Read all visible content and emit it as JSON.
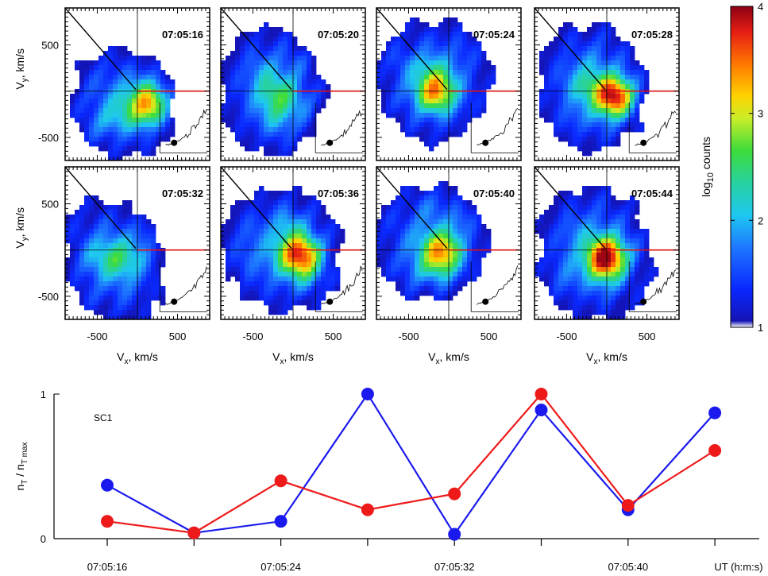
{
  "chart_data": [
    {
      "type": "heatmap",
      "panels": [
        {
          "time": "07:05:16"
        },
        {
          "time": "07:05:20"
        },
        {
          "time": "07:05:24"
        },
        {
          "time": "07:05:28"
        },
        {
          "time": "07:05:32"
        },
        {
          "time": "07:05:36"
        },
        {
          "time": "07:05:40"
        },
        {
          "time": "07:05:44"
        }
      ],
      "xlabel_main": "V",
      "xlabel_sub": "x",
      "xlabel_unit": ", km/s",
      "ylabel_main": "V",
      "ylabel_sub": "y",
      "ylabel_unit": ", km/s",
      "x_ticks": [
        -500,
        500
      ],
      "y_ticks": [
        500,
        -500
      ],
      "xlim": [
        -900,
        900
      ],
      "ylim": [
        -750,
        900
      ],
      "colorbar": {
        "label_pre": "log",
        "label_sub": "10",
        "label_post": " counts",
        "range": [
          1,
          4
        ],
        "ticks": [
          1,
          2,
          3,
          4
        ]
      }
    },
    {
      "type": "line",
      "series_label": "SC1",
      "ylabel_main": "n",
      "ylabel_sub1": "T",
      "ylabel_mid": " / n",
      "ylabel_sub2": "T max",
      "x_unit_label": "UT (h:m:s)",
      "x_tick_labels": [
        "07:05:16",
        "07:05:24",
        "07:05:32",
        "07:05:40"
      ],
      "y_ticks": [
        0,
        1
      ],
      "ylim": [
        0,
        1
      ],
      "x_index": [
        0,
        1,
        2,
        3,
        4,
        5,
        6,
        7
      ],
      "series": [
        {
          "color": "#1a1aee",
          "values": [
            0.37,
            0.04,
            0.12,
            1.0,
            0.03,
            0.89,
            0.2,
            0.87
          ]
        },
        {
          "color": "#ee1a1a",
          "values": [
            0.12,
            0.04,
            0.4,
            0.2,
            0.31,
            1.0,
            0.23,
            0.61
          ]
        }
      ]
    }
  ]
}
